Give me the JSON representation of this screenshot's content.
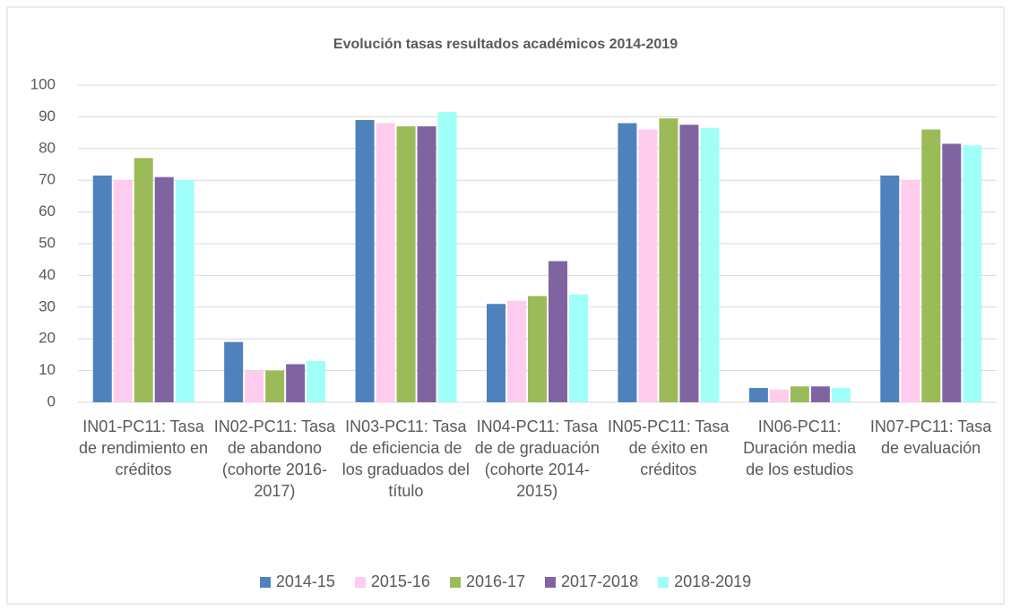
{
  "chart_data": {
    "type": "bar",
    "title": "Evolución tasas resultados académicos 2014-2019",
    "categories": [
      "IN01-PC11: Tasa de rendimiento en créditos",
      "IN02-PC11: Tasa de abandono (cohorte 2016-2017)",
      "IN03-PC11: Tasa de eficiencia de los graduados del título",
      "IN04-PC11: Tasa de de graduación (cohorte 2014-2015)",
      "IN05-PC11: Tasa de éxito en créditos",
      "IN06-PC11: Duración media de los estudios",
      "IN07-PC11: Tasa de evaluación"
    ],
    "series": [
      {
        "name": "2014-15",
        "color": "#4f81bd",
        "values": [
          71.5,
          19,
          89,
          31,
          88,
          4.5,
          71.5
        ]
      },
      {
        "name": "2015-16",
        "color": "#ffccee",
        "values": [
          70,
          10,
          88,
          32,
          86,
          4,
          70
        ]
      },
      {
        "name": "2016-17",
        "color": "#9bbb59",
        "values": [
          77,
          10,
          87,
          33.5,
          89.5,
          5,
          86
        ]
      },
      {
        "name": "2017-2018",
        "color": "#8064a2",
        "values": [
          71,
          12,
          87,
          44.5,
          87.5,
          5,
          81.5
        ]
      },
      {
        "name": "2018-2019",
        "color": "#a0fff8",
        "values": [
          70,
          13,
          91.5,
          34,
          86.5,
          4.5,
          81
        ]
      }
    ],
    "ylim": [
      0,
      100
    ],
    "yticks": [
      0,
      10,
      20,
      30,
      40,
      50,
      60,
      70,
      80,
      90,
      100
    ],
    "grid": true,
    "legend": "bottom"
  }
}
